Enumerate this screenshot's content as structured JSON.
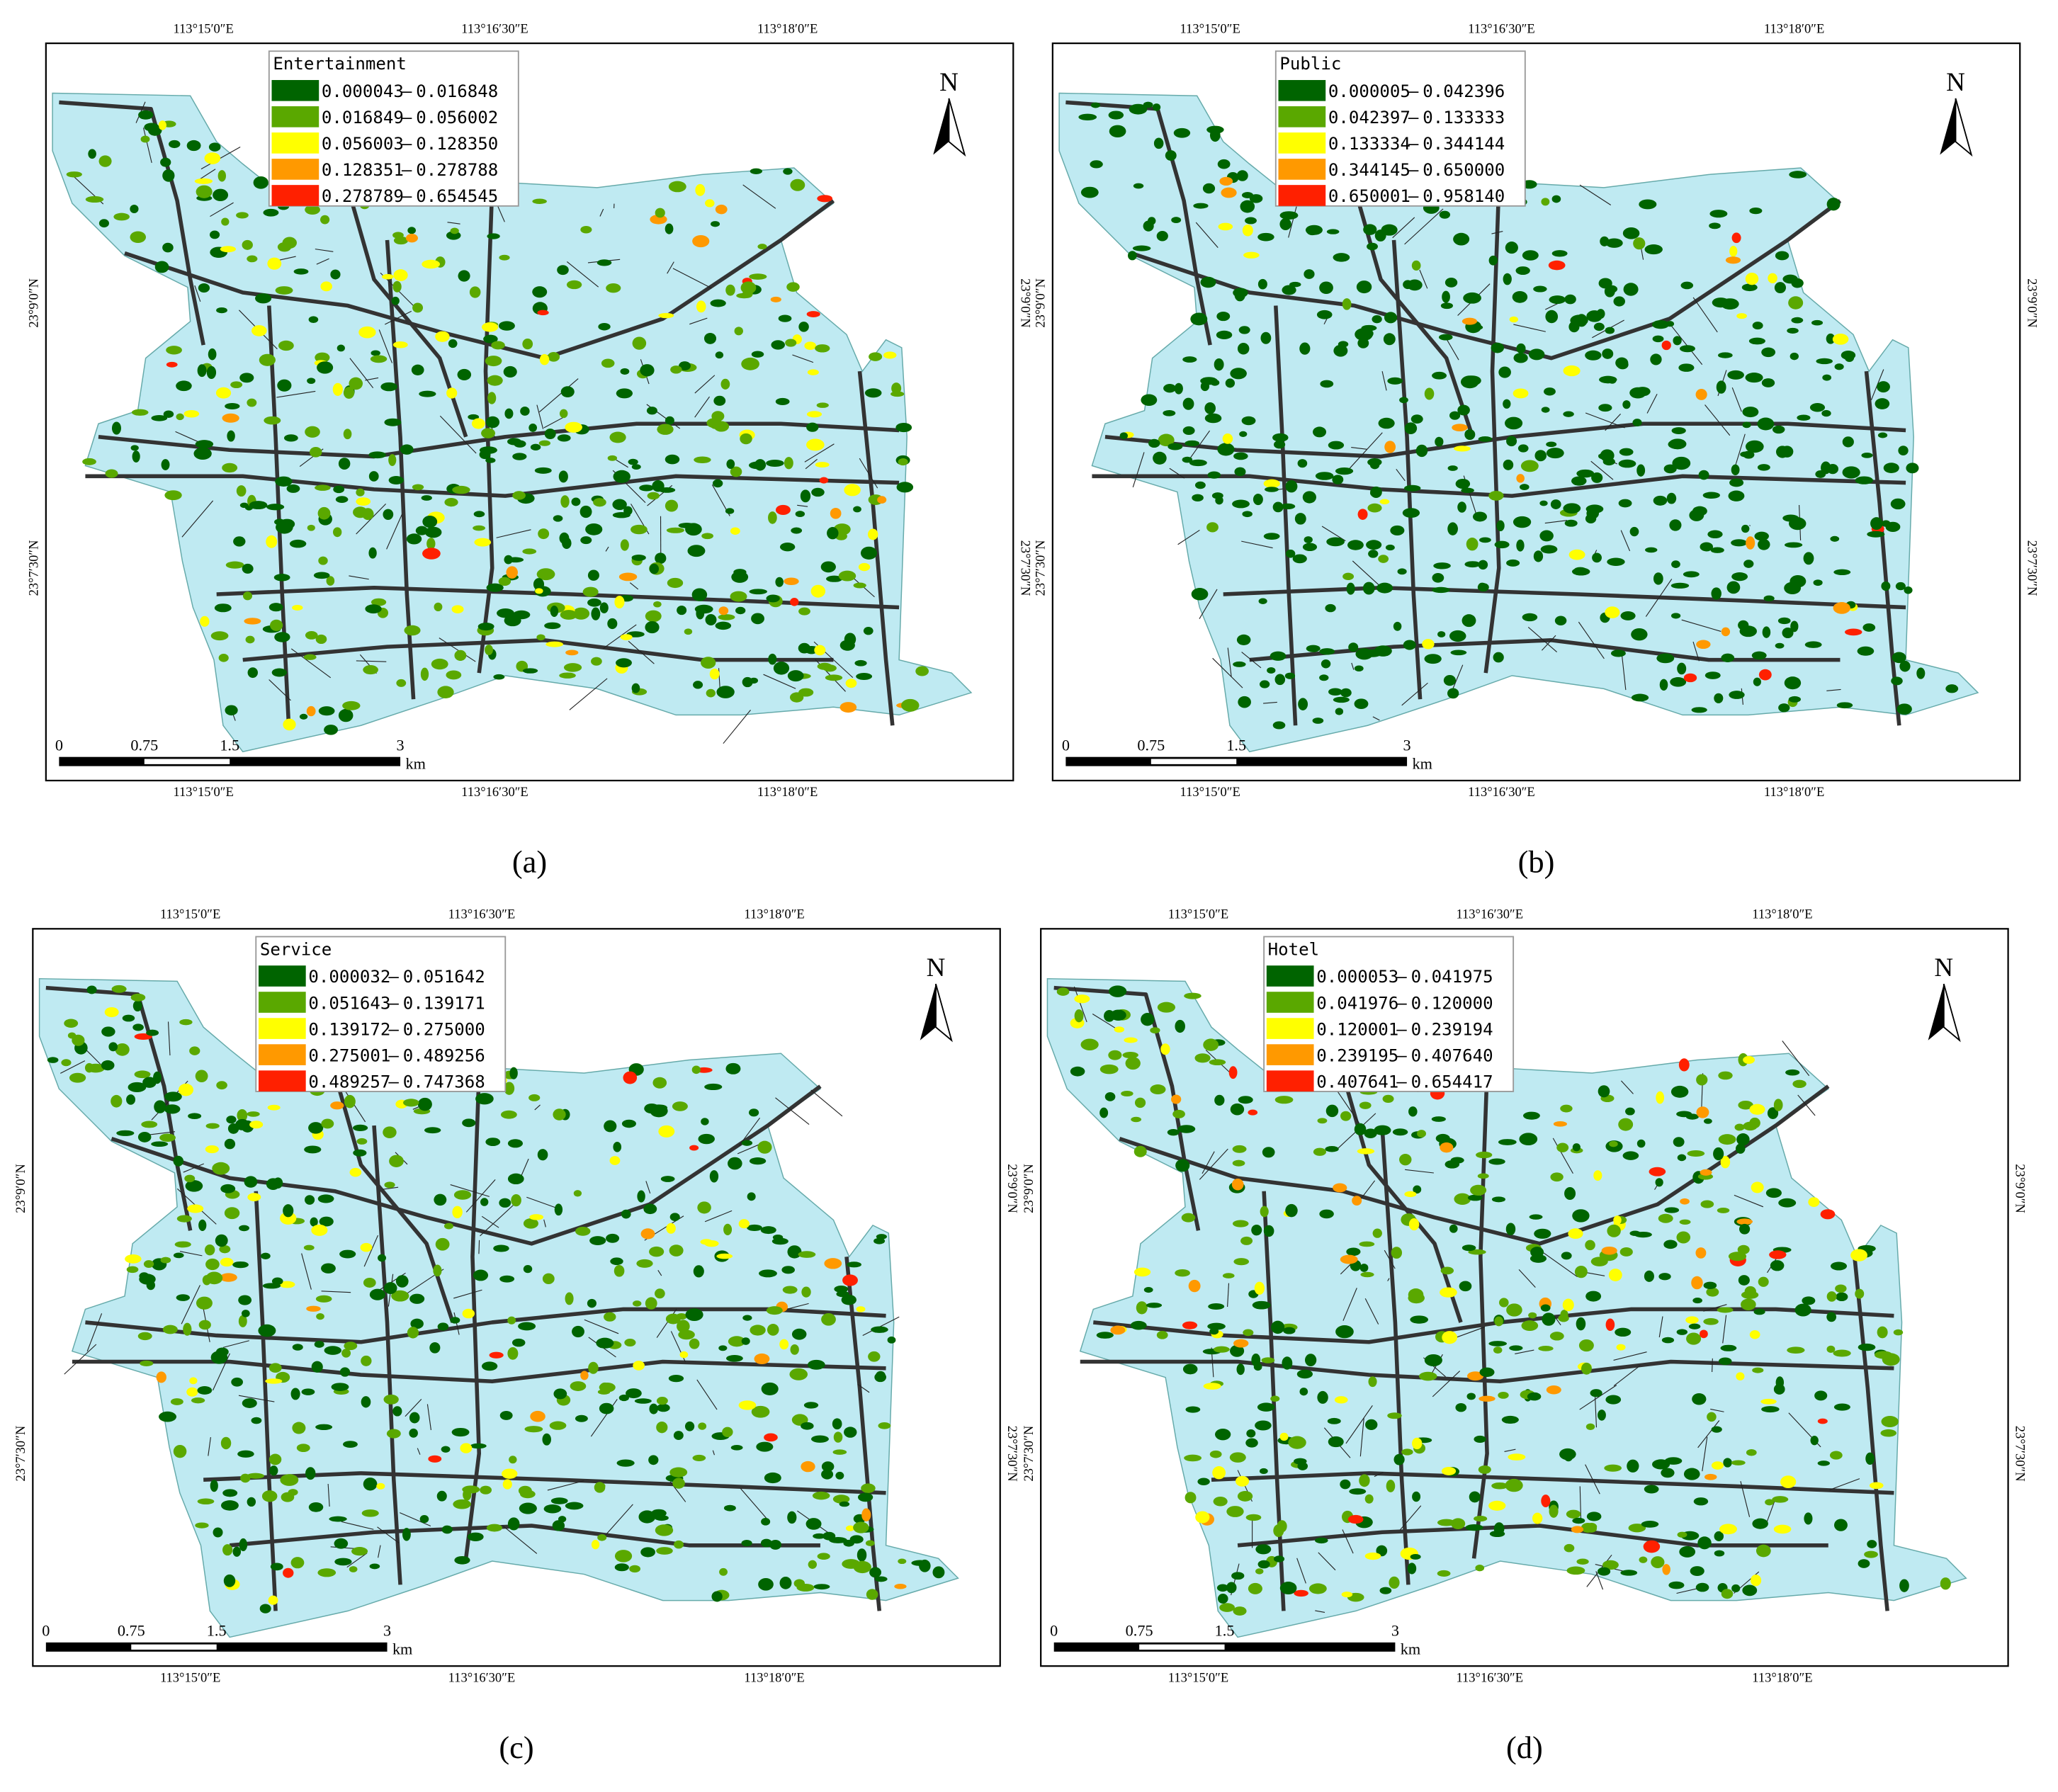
{
  "coordinates": {
    "lon": [
      "113°15′0″E",
      "113°16′30″E",
      "113°18′0″E"
    ],
    "lat": [
      "23°9′0″N",
      "23°7′30″N"
    ]
  },
  "scale_bar": {
    "labels": [
      "0",
      "0.75",
      "1.5",
      "3"
    ],
    "unit": "km"
  },
  "north": "N",
  "panels": [
    {
      "caption": "(a)",
      "legend_title": "Entertainment",
      "classes": [
        {
          "color": "#006400",
          "lower": "0.000043",
          "upper": "0.016848"
        },
        {
          "color": "#5aa800",
          "lower": "0.016849",
          "upper": "0.056002"
        },
        {
          "color": "#ffff00",
          "lower": "0.056003",
          "upper": "0.128350"
        },
        {
          "color": "#ff9900",
          "lower": "0.128351",
          "upper": "0.278788"
        },
        {
          "color": "#ff2000",
          "lower": "0.278789",
          "upper": "0.654545"
        }
      ]
    },
    {
      "caption": "(b)",
      "legend_title": "Public",
      "classes": [
        {
          "color": "#006400",
          "lower": "0.000005",
          "upper": "0.042396"
        },
        {
          "color": "#5aa800",
          "lower": "0.042397",
          "upper": "0.133333"
        },
        {
          "color": "#ffff00",
          "lower": "0.133334",
          "upper": "0.344144"
        },
        {
          "color": "#ff9900",
          "lower": "0.344145",
          "upper": "0.650000"
        },
        {
          "color": "#ff2000",
          "lower": "0.650001",
          "upper": "0.958140"
        }
      ]
    },
    {
      "caption": "(c)",
      "legend_title": "Service",
      "classes": [
        {
          "color": "#006400",
          "lower": "0.000032",
          "upper": "0.051642"
        },
        {
          "color": "#5aa800",
          "lower": "0.051643",
          "upper": "0.139171"
        },
        {
          "color": "#ffff00",
          "lower": "0.139172",
          "upper": "0.275000"
        },
        {
          "color": "#ff9900",
          "lower": "0.275001",
          "upper": "0.489256"
        },
        {
          "color": "#ff2000",
          "lower": "0.489257",
          "upper": "0.747368"
        }
      ]
    },
    {
      "caption": "(d)",
      "legend_title": "Hotel",
      "classes": [
        {
          "color": "#006400",
          "lower": "0.000053",
          "upper": "0.041975"
        },
        {
          "color": "#5aa800",
          "lower": "0.041976",
          "upper": "0.120000"
        },
        {
          "color": "#ffff00",
          "lower": "0.120001",
          "upper": "0.239194"
        },
        {
          "color": "#ff9900",
          "lower": "0.239195",
          "upper": "0.407640"
        },
        {
          "color": "#ff2000",
          "lower": "0.407641",
          "upper": "0.654417"
        }
      ]
    }
  ]
}
